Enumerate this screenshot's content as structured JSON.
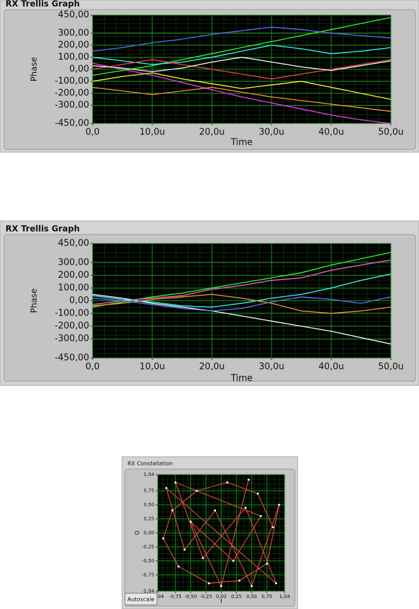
{
  "chart_data": [
    {
      "type": "line",
      "title": "RX Trellis Graph",
      "xlabel": "Time",
      "ylabel": "Phase",
      "x": [
        0,
        5e-06,
        1e-05,
        1.5e-05,
        2e-05,
        2.5e-05,
        3e-05,
        3.5e-05,
        4e-05,
        4.5e-05,
        5e-05
      ],
      "xlim": [
        0,
        5e-05
      ],
      "xticks": [
        {
          "value": 0,
          "label": "0,0"
        },
        {
          "value": 1e-05,
          "label": "10,0u"
        },
        {
          "value": 2e-05,
          "label": "20,0u"
        },
        {
          "value": 3e-05,
          "label": "30,0u"
        },
        {
          "value": 4e-05,
          "label": "40,0u"
        },
        {
          "value": 5e-05,
          "label": "50,0u"
        }
      ],
      "ylim": [
        -450,
        450
      ],
      "yticks": [
        {
          "value": 450,
          "label": "450,00"
        },
        {
          "value": 300,
          "label": "300,00"
        },
        {
          "value": 200,
          "label": "200,00"
        },
        {
          "value": 100,
          "label": "100,00"
        },
        {
          "value": 0,
          "label": "0,00"
        },
        {
          "value": -100,
          "label": "-100,00"
        },
        {
          "value": -200,
          "label": "-200,00"
        },
        {
          "value": -300,
          "label": "-300,00"
        },
        {
          "value": -450,
          "label": "-450,00"
        }
      ],
      "grid": true,
      "series": [
        {
          "color": "#ff33ff",
          "values": [
            50,
            0,
            -50,
            -110,
            -170,
            -230,
            -280,
            -330,
            -380,
            -420,
            -450
          ]
        },
        {
          "color": "#33ff33",
          "values": [
            -50,
            -10,
            30,
            80,
            130,
            180,
            230,
            280,
            330,
            380,
            430
          ]
        },
        {
          "color": "#33ffff",
          "values": [
            100,
            70,
            40,
            60,
            100,
            150,
            200,
            170,
            130,
            150,
            180
          ]
        },
        {
          "color": "#ff4444",
          "values": [
            0,
            40,
            80,
            40,
            0,
            -40,
            -80,
            -40,
            0,
            40,
            80
          ]
        },
        {
          "color": "#ffff33",
          "values": [
            -100,
            -60,
            -30,
            -80,
            -120,
            -160,
            -130,
            -100,
            -150,
            -200,
            -250
          ]
        },
        {
          "color": "#ffffff",
          "values": [
            30,
            10,
            -20,
            10,
            60,
            100,
            60,
            20,
            -10,
            30,
            70
          ]
        },
        {
          "color": "#5577ff",
          "values": [
            150,
            180,
            220,
            250,
            290,
            320,
            350,
            330,
            300,
            280,
            260
          ]
        },
        {
          "color": "#ff9933",
          "values": [
            -150,
            -180,
            -210,
            -180,
            -150,
            -190,
            -230,
            -260,
            -290,
            -320,
            -350
          ]
        }
      ]
    },
    {
      "type": "line",
      "title": "RX Trellis Graph",
      "xlabel": "Time",
      "ylabel": "Phase",
      "x": [
        0,
        5e-06,
        1e-05,
        1.5e-05,
        2e-05,
        2.5e-05,
        3e-05,
        3.5e-05,
        4e-05,
        4.5e-05,
        5e-05
      ],
      "xlim": [
        0,
        5e-05
      ],
      "xticks": [
        {
          "value": 0,
          "label": "0,0"
        },
        {
          "value": 1e-05,
          "label": "10,0u"
        },
        {
          "value": 2e-05,
          "label": "20,0u"
        },
        {
          "value": 3e-05,
          "label": "30,0u"
        },
        {
          "value": 4e-05,
          "label": "40,0u"
        },
        {
          "value": 5e-05,
          "label": "50,0u"
        }
      ],
      "ylim": [
        -450,
        450
      ],
      "yticks": [
        {
          "value": 450,
          "label": "450,00"
        },
        {
          "value": 300,
          "label": "300,00"
        },
        {
          "value": 200,
          "label": "200,00"
        },
        {
          "value": 100,
          "label": "100,00"
        },
        {
          "value": 0,
          "label": "0,00"
        },
        {
          "value": -100,
          "label": "-100,00"
        },
        {
          "value": -200,
          "label": "-200,00"
        },
        {
          "value": -300,
          "label": "-300,00"
        },
        {
          "value": -450,
          "label": "-450,00"
        }
      ],
      "grid": true,
      "series": [
        {
          "color": "#33ff33",
          "values": [
            -50,
            -10,
            30,
            60,
            100,
            140,
            180,
            220,
            280,
            330,
            380
          ]
        },
        {
          "color": "#ffffff",
          "values": [
            50,
            20,
            -20,
            -50,
            -80,
            -120,
            -160,
            -200,
            -240,
            -290,
            -340
          ]
        },
        {
          "color": "#ff66cc",
          "values": [
            -30,
            0,
            20,
            40,
            90,
            120,
            160,
            180,
            240,
            280,
            320
          ]
        },
        {
          "color": "#33ffff",
          "values": [
            40,
            10,
            -10,
            -40,
            -50,
            -20,
            20,
            50,
            100,
            160,
            210
          ]
        },
        {
          "color": "#ff9933",
          "values": [
            -40,
            -20,
            10,
            30,
            50,
            20,
            -20,
            -80,
            -100,
            -80,
            -50
          ]
        },
        {
          "color": "#6677ff",
          "values": [
            20,
            0,
            -30,
            -60,
            -80,
            -60,
            -10,
            30,
            10,
            -20,
            30
          ]
        }
      ]
    },
    {
      "type": "scatter",
      "title": "RX Constellation",
      "xlabel": "I",
      "ylabel": "Q",
      "button": "Autoscale",
      "color": "#ff4a4a",
      "point_color": "#ffffff",
      "x": [
        0.85,
        0.6,
        0.1,
        -0.4,
        -0.8,
        -0.95,
        -0.7,
        -0.2,
        0.3,
        0.75,
        0.95,
        0.5,
        -0.1,
        -0.6,
        -0.9,
        0.9,
        0.4,
        -0.3,
        -0.75,
        0.65,
        0.2,
        -0.5,
        0.0,
        0.45
      ],
      "values": [
        0.1,
        0.7,
        0.9,
        0.75,
        0.4,
        -0.1,
        -0.6,
        -0.9,
        -0.85,
        -0.55,
        0.5,
        -0.95,
        0.4,
        -0.3,
        0.8,
        -0.9,
        0.45,
        -0.45,
        0.9,
        0.3,
        -0.5,
        0.2,
        -0.95,
        0.95
      ],
      "xlim": [
        -1.04,
        1.04
      ],
      "ylim": [
        -1.04,
        1.04
      ],
      "xticks": [
        {
          "value": -1.04,
          "label": "-1,04"
        },
        {
          "value": -0.75,
          "label": "-0,75"
        },
        {
          "value": -0.5,
          "label": "-0,50"
        },
        {
          "value": -0.25,
          "label": "-0,25"
        },
        {
          "value": 0,
          "label": "0,00"
        },
        {
          "value": 0.25,
          "label": "0,25"
        },
        {
          "value": 0.5,
          "label": "0,50"
        },
        {
          "value": 0.75,
          "label": "0,75"
        },
        {
          "value": 1.04,
          "label": "1,04"
        }
      ],
      "yticks": [
        {
          "value": 1.04,
          "label": "1,04"
        },
        {
          "value": 0.75,
          "label": "0,75"
        },
        {
          "value": 0.5,
          "label": "0,50"
        },
        {
          "value": 0.25,
          "label": "0,25"
        },
        {
          "value": 0,
          "label": "0,00"
        },
        {
          "value": -0.25,
          "label": "-0,25"
        },
        {
          "value": -0.5,
          "label": "-0,50"
        },
        {
          "value": -0.75,
          "label": "-0,75"
        },
        {
          "value": -1.04,
          "label": "-1,04"
        }
      ],
      "grid": true
    }
  ]
}
